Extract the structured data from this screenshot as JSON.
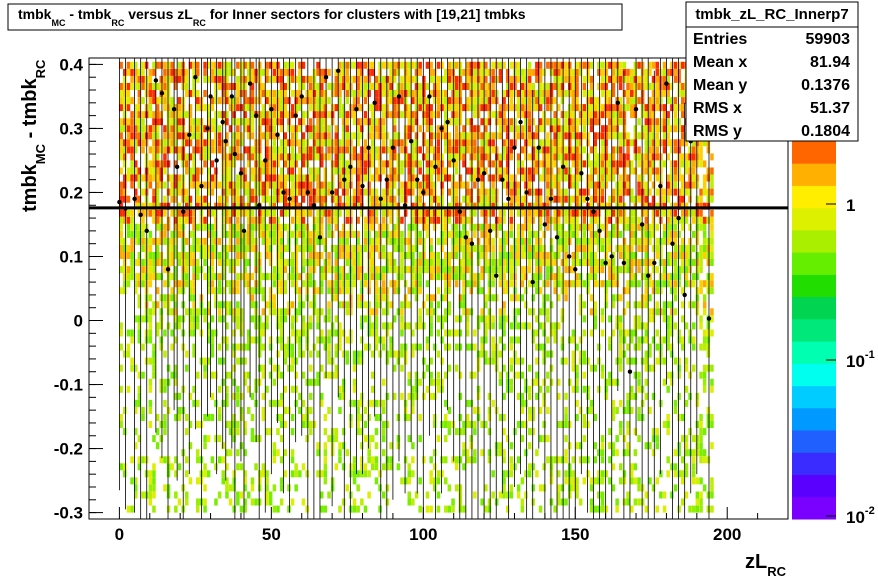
{
  "title": {
    "parts": [
      "tmbk",
      "MC",
      " - tmbk",
      "RC",
      " versus zL",
      "RC",
      " for Inner sectors for clusters with [19,21] tmbks"
    ]
  },
  "stats": {
    "name": "tmbk_zL_RC_Innerp7",
    "rows": [
      {
        "label": "Entries",
        "value": "59903"
      },
      {
        "label": "Mean x",
        "value": "81.94"
      },
      {
        "label": "Mean y",
        "value": "0.1376"
      },
      {
        "label": "RMS x",
        "value": "51.37"
      },
      {
        "label": "RMS y",
        "value": "0.1804"
      }
    ]
  },
  "chart_data": {
    "type": "heatmap",
    "xlabel": {
      "main": "zL",
      "sub": "RC"
    },
    "ylabel": {
      "main": "tmbk",
      "sub1": "MC",
      "mid": " - tmbk",
      "sub2": "RC"
    },
    "xlim": [
      -10,
      220
    ],
    "ylim": [
      -0.31,
      0.41
    ],
    "x_ticks": [
      0,
      50,
      100,
      150,
      200
    ],
    "x_tick_labels": [
      "0",
      "50",
      "100",
      "150",
      "200"
    ],
    "y_ticks": [
      -0.3,
      -0.2,
      -0.1,
      0,
      0.1,
      0.2,
      0.3,
      0.4
    ],
    "y_tick_labels": [
      "-0.3",
      "-0.2",
      "-0.1",
      "0",
      "0.1",
      "0.2",
      "0.3",
      "0.4"
    ],
    "color_scale": "log",
    "z_ticks": [
      {
        "base": "1",
        "exp": ""
      },
      {
        "base": "10",
        "exp": "-1"
      },
      {
        "base": "10",
        "exp": "-2"
      }
    ],
    "palette": [
      "#7a00ff",
      "#5a00ff",
      "#3a2bff",
      "#2060ff",
      "#0099ff",
      "#00ccff",
      "#00ffee",
      "#00ffb0",
      "#00e87a",
      "#00d450",
      "#22dd00",
      "#66ee00",
      "#aaee00",
      "#ddf000",
      "#ffee00",
      "#ffb000",
      "#ff6600"
    ],
    "horizontal_line_y": 0.176,
    "data_region": {
      "xmin": 0,
      "xmax": 195,
      "ymin": -0.3,
      "ymax": 0.4
    },
    "profile_points": [
      {
        "x": 0,
        "y": 0.185
      },
      {
        "x": 2,
        "y": 0.175
      },
      {
        "x": 5,
        "y": 0.19
      },
      {
        "x": 7,
        "y": 0.165
      },
      {
        "x": 9,
        "y": 0.14
      },
      {
        "x": 12,
        "y": 0.375
      },
      {
        "x": 14,
        "y": 0.355
      },
      {
        "x": 16,
        "y": 0.08
      },
      {
        "x": 18,
        "y": 0.33
      },
      {
        "x": 19,
        "y": 0.24
      },
      {
        "x": 21,
        "y": 0.17
      },
      {
        "x": 23,
        "y": 0.29
      },
      {
        "x": 25,
        "y": 0.38
      },
      {
        "x": 27,
        "y": 0.21
      },
      {
        "x": 29,
        "y": 0.3
      },
      {
        "x": 30,
        "y": 0.35
      },
      {
        "x": 32,
        "y": 0.25
      },
      {
        "x": 34,
        "y": 0.31
      },
      {
        "x": 35,
        "y": 0.28
      },
      {
        "x": 37,
        "y": 0.35
      },
      {
        "x": 38,
        "y": 0.26
      },
      {
        "x": 40,
        "y": 0.23
      },
      {
        "x": 41,
        "y": 0.14
      },
      {
        "x": 43,
        "y": 0.37
      },
      {
        "x": 45,
        "y": 0.32
      },
      {
        "x": 46,
        "y": 0.18
      },
      {
        "x": 48,
        "y": 0.25
      },
      {
        "x": 50,
        "y": 0.33
      },
      {
        "x": 52,
        "y": 0.29
      },
      {
        "x": 54,
        "y": 0.2
      },
      {
        "x": 56,
        "y": 0.19
      },
      {
        "x": 58,
        "y": 0.32
      },
      {
        "x": 60,
        "y": 0.35
      },
      {
        "x": 62,
        "y": 0.2
      },
      {
        "x": 64,
        "y": 0.18
      },
      {
        "x": 66,
        "y": 0.13
      },
      {
        "x": 68,
        "y": 0.38
      },
      {
        "x": 70,
        "y": 0.2
      },
      {
        "x": 72,
        "y": 0.39
      },
      {
        "x": 74,
        "y": 0.22
      },
      {
        "x": 76,
        "y": 0.24
      },
      {
        "x": 78,
        "y": 0.33
      },
      {
        "x": 80,
        "y": 0.21
      },
      {
        "x": 82,
        "y": 0.27
      },
      {
        "x": 84,
        "y": 0.34
      },
      {
        "x": 86,
        "y": 0.19
      },
      {
        "x": 88,
        "y": 0.22
      },
      {
        "x": 90,
        "y": 0.27
      },
      {
        "x": 92,
        "y": 0.35
      },
      {
        "x": 94,
        "y": 0.18
      },
      {
        "x": 96,
        "y": 0.28
      },
      {
        "x": 98,
        "y": 0.22
      },
      {
        "x": 100,
        "y": 0.2
      },
      {
        "x": 102,
        "y": 0.35
      },
      {
        "x": 104,
        "y": 0.24
      },
      {
        "x": 106,
        "y": 0.3
      },
      {
        "x": 108,
        "y": 0.31
      },
      {
        "x": 110,
        "y": 0.25
      },
      {
        "x": 112,
        "y": 0.17
      },
      {
        "x": 114,
        "y": 0.13
      },
      {
        "x": 116,
        "y": 0.12
      },
      {
        "x": 118,
        "y": 0.22
      },
      {
        "x": 120,
        "y": 0.23
      },
      {
        "x": 122,
        "y": 0.14
      },
      {
        "x": 124,
        "y": 0.07
      },
      {
        "x": 126,
        "y": 0.22
      },
      {
        "x": 128,
        "y": 0.19
      },
      {
        "x": 130,
        "y": 0.27
      },
      {
        "x": 132,
        "y": 0.31
      },
      {
        "x": 134,
        "y": 0.2
      },
      {
        "x": 136,
        "y": 0.06
      },
      {
        "x": 138,
        "y": 0.27
      },
      {
        "x": 140,
        "y": 0.15
      },
      {
        "x": 142,
        "y": 0.19
      },
      {
        "x": 144,
        "y": 0.13
      },
      {
        "x": 146,
        "y": 0.24
      },
      {
        "x": 148,
        "y": 0.1
      },
      {
        "x": 150,
        "y": 0.08
      },
      {
        "x": 152,
        "y": 0.23
      },
      {
        "x": 154,
        "y": 0.19
      },
      {
        "x": 156,
        "y": 0.17
      },
      {
        "x": 158,
        "y": 0.14
      },
      {
        "x": 160,
        "y": 0.09
      },
      {
        "x": 162,
        "y": 0.1
      },
      {
        "x": 164,
        "y": 0.34
      },
      {
        "x": 166,
        "y": 0.09
      },
      {
        "x": 168,
        "y": -0.08
      },
      {
        "x": 170,
        "y": 0.33
      },
      {
        "x": 172,
        "y": 0.15
      },
      {
        "x": 174,
        "y": 0.07
      },
      {
        "x": 176,
        "y": 0.09
      },
      {
        "x": 178,
        "y": 0.21
      },
      {
        "x": 180,
        "y": 0.37
      },
      {
        "x": 182,
        "y": 0.12
      },
      {
        "x": 184,
        "y": 0.16
      },
      {
        "x": 186,
        "y": 0.04
      },
      {
        "x": 188,
        "y": 0.28
      },
      {
        "x": 190,
        "y": 0.33
      },
      {
        "x": 194,
        "y": 0.003
      }
    ]
  }
}
